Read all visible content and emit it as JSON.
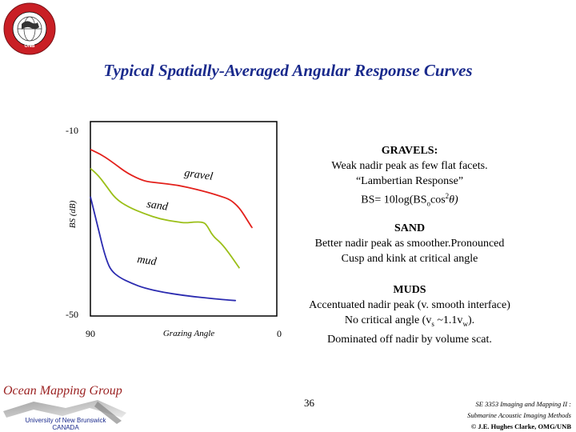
{
  "title": "Typical Spatially-Averaged Angular Response Curves",
  "colors": {
    "gravel": "#e3201b",
    "sand": "#9bbf18",
    "mud": "#2b2bb0",
    "title": "#1a2a8c"
  },
  "chart_data": {
    "type": "line",
    "title": "",
    "xlabel": "Grazing Angle",
    "ylabel": "BS (dB)",
    "xlim": [
      90,
      0
    ],
    "ylim": [
      -50,
      -10
    ],
    "x_ticks": [
      "90",
      "0"
    ],
    "y_ticks": [
      "-10",
      "-50"
    ],
    "grid": false,
    "series": [
      {
        "name": "gravel",
        "color": "#e3201b",
        "x": [
          90,
          84,
          78,
          72,
          64,
          58,
          48,
          38,
          30,
          20,
          12
        ],
        "y": [
          -14.3,
          -15.6,
          -17.5,
          -19.5,
          -21.2,
          -21.5,
          -22.0,
          -23.0,
          -24.0,
          -25.5,
          -31.2
        ]
      },
      {
        "name": "sand",
        "color": "#9bbf18",
        "x": [
          90,
          86,
          82,
          78,
          72,
          64,
          56,
          48,
          44,
          40,
          36,
          34,
          31,
          27,
          23,
          18
        ],
        "y": [
          -18.4,
          -20.0,
          -22.4,
          -24.9,
          -26.7,
          -28.2,
          -29.4,
          -30.0,
          -30.2,
          -30.0,
          -30.0,
          -30.5,
          -33.0,
          -34.5,
          -36.8,
          -40.0
        ]
      },
      {
        "name": "mud",
        "color": "#2b2bb0",
        "x": [
          90,
          87,
          84,
          82,
          80,
          76,
          70,
          64,
          55,
          45,
          35,
          26,
          20
        ],
        "y": [
          -24.5,
          -30.0,
          -35.5,
          -38.5,
          -40.5,
          -42.0,
          -43.3,
          -44.3,
          -45.2,
          -45.9,
          -46.4,
          -46.8,
          -47.0
        ]
      }
    ],
    "annotations": [
      "gravel",
      "sand",
      "mud"
    ]
  },
  "notes": {
    "gravels": {
      "heading": "GRAVELS:",
      "line1": "Weak nadir peak as few flat facets.",
      "line2": "“Lambertian Response”",
      "formula_pre": "BS= 10log(BS",
      "formula_sub": "o",
      "formula_mid": "cos",
      "formula_sup": "2",
      "formula_post": "θ)"
    },
    "sand": {
      "heading": "SAND",
      "line1": "Better nadir peak as smoother.Pronounced",
      "line2": "Cusp and kink at critical angle"
    },
    "muds": {
      "heading": "MUDS",
      "line1": "Accentuated nadir peak (v. smooth interface)",
      "line2_a": "No critical angle (v",
      "line2_sub1": "s",
      "line2_b": " ~1.1v",
      "line2_sub2": "w",
      "line2_c": ").",
      "line3": "Dominated off nadir by volume scat."
    }
  },
  "footer": {
    "group": "Ocean Mapping Group",
    "university": "University of New Brunswick",
    "country": "CANADA",
    "page": "36",
    "course": "SE 3353 Imaging and Mapping II :",
    "subtitle": "Submarine Acoustic Imaging Methods",
    "copyright": "© J.E. Hughes Clarke, OMG/UNB"
  },
  "logo_text": "GEODESY AND GEOMATICS ENGINEERING UNB"
}
